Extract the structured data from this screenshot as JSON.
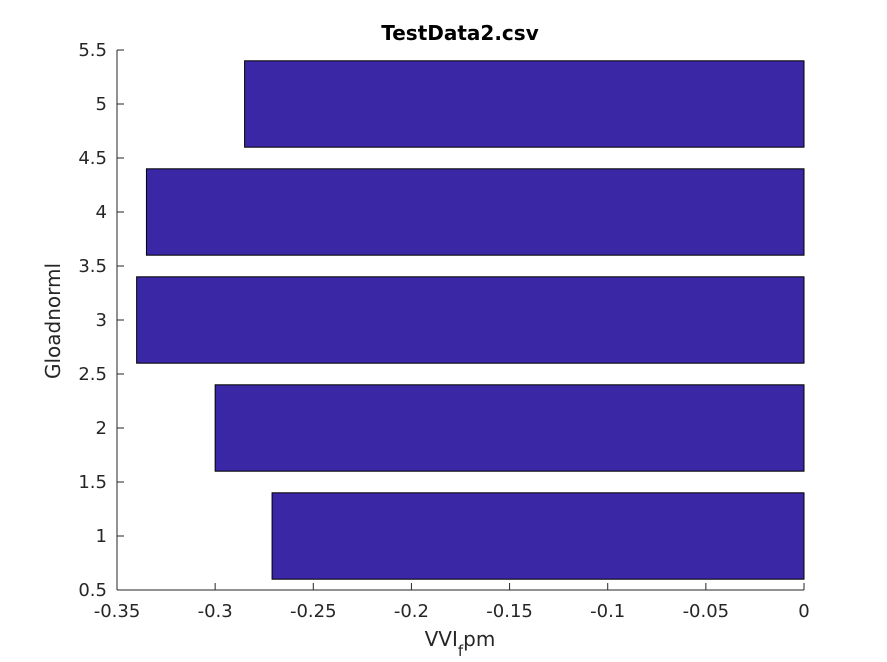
{
  "chart_data": {
    "type": "bar",
    "orientation": "horizontal",
    "title": "TestData2.csv",
    "xlabel_main": "VVI",
    "xlabel_sub": "f",
    "xlabel_tail": "pm",
    "ylabel": "Gloadnorml",
    "categories": [
      1,
      2,
      3,
      4,
      5
    ],
    "values": [
      -0.271,
      -0.3,
      -0.34,
      -0.335,
      -0.285
    ],
    "xlim": [
      -0.35,
      0
    ],
    "ylim": [
      0.5,
      5.5
    ],
    "xticks": [
      "-0.35",
      "-0.3",
      "-0.25",
      "-0.2",
      "-0.15",
      "-0.1",
      "-0.05",
      "0"
    ],
    "yticks": [
      "0.5",
      "1",
      "1.5",
      "2",
      "2.5",
      "3",
      "3.5",
      "4",
      "4.5",
      "5",
      "5.5"
    ],
    "bar_color": "#3a27a6",
    "grid": false
  }
}
